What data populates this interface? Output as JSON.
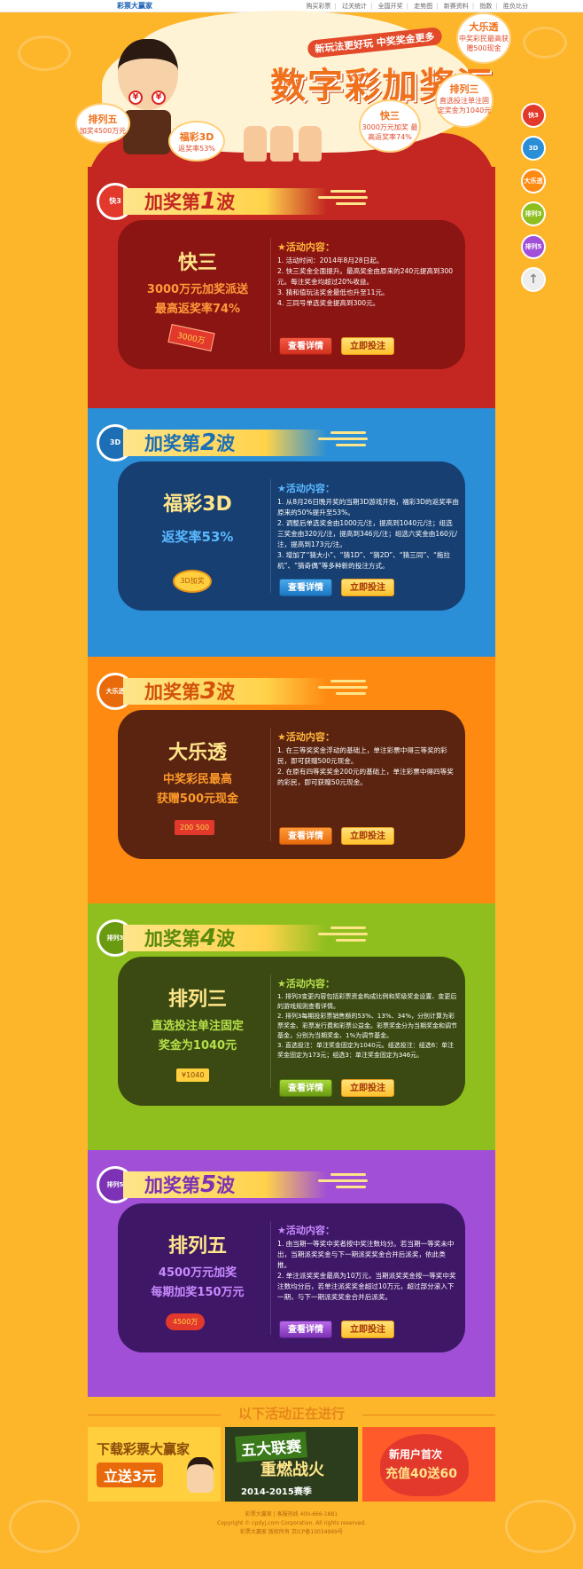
{
  "topbar": {
    "logo": "彩票大赢家",
    "nav": [
      "购买彩票",
      "过关统计",
      "全国开奖",
      "走势图",
      "新赛资料",
      "指数",
      "胜负比分"
    ]
  },
  "header": {
    "slogan": "新玩法更好玩 中奖奖金更多",
    "title": "数字彩加奖汇",
    "bubbles": {
      "pl5": {
        "name": "排列五",
        "desc": "加奖4500万元"
      },
      "fc3d": {
        "name": "福彩3D",
        "desc": "返奖率53%"
      },
      "k3": {
        "name": "快三",
        "desc": "3000万元加奖 最高返奖率74%"
      },
      "pl3": {
        "name": "排列三",
        "desc": "直选投注单注固定奖金为1040元"
      },
      "dlt": {
        "name": "大乐透",
        "desc": "中奖彩民最高获赠500现金"
      }
    }
  },
  "sidenav": [
    "快3",
    "3D",
    "大乐透",
    "排列3",
    "排列5",
    "↑"
  ],
  "waves": [
    {
      "title_prefix": "加奖第",
      "num": "1",
      "title_suffix": "波",
      "badge": "快3",
      "game": "快三",
      "promo": [
        "3000万元加奖派送",
        "最高返奖率74%"
      ],
      "deco": "3000万",
      "act_title": "★活动内容：",
      "items": [
        "1. 活动时间：2014年8月28日起。",
        "2. 快三奖金全面提升。最高奖金由原来的240元提高到300元。每注奖金均超过20%收益。",
        "3. 猜和值玩法奖金最低也升至11元。",
        "4. 三同号单选奖金提高到300元。"
      ],
      "btn_detail": "查看详情",
      "btn_bet": "立即投注"
    },
    {
      "title_prefix": "加奖第",
      "num": "2",
      "title_suffix": "波",
      "badge": "3D",
      "game": "福彩3D",
      "promo": [
        "返奖率53%"
      ],
      "deco": "3D加奖",
      "act_title": "★活动内容：",
      "items": [
        "1. 从8月26日晚开奖的当期3D游戏开始，福彩3D的返奖率由原来的50%提升至53%。",
        "2. 调整后单选奖金由1000元/注，提高到1040元/注；组选三奖金由320元/注，提高到346元/注；组选六奖金由160元/注，提高到173元/注。",
        "3. 增加了“猜大小”、“猜1D”、“猜2D”、“猜三同”、“拖拉机”、“猜奇偶”等多种新的投注方式。"
      ],
      "btn_detail": "查看详情",
      "btn_bet": "立即投注"
    },
    {
      "title_prefix": "加奖第",
      "num": "3",
      "title_suffix": "波",
      "badge": "大乐透",
      "game": "大乐透",
      "promo": [
        "中奖彩民最高",
        "获赠500元现金"
      ],
      "deco": "200 500",
      "act_title": "★活动内容：",
      "items": [
        "1. 在三等奖奖金浮动的基础上，单注彩票中得三等奖的彩民，即可获赠500元现金。",
        "2. 在原有四等奖奖金200元的基础上，单注彩票中得四等奖的彩民，即可获赠50元现金。"
      ],
      "btn_detail": "查看详情",
      "btn_bet": "立即投注"
    },
    {
      "title_prefix": "加奖第",
      "num": "4",
      "title_suffix": "波",
      "badge": "排列3",
      "game": "排列三",
      "promo": [
        "直选投注单注固定",
        "奖金为1040元"
      ],
      "deco": "¥1040",
      "act_title": "★活动内容：",
      "items": [
        "1. 排列3变更内容包括彩票资金构成比例和奖级奖金设置、变更后的游戏规则查看详情。",
        "2. 排列3每期投彩票销售额的53%、13%、34%，分别计算为彩票奖金、彩票发行费和彩票公益金。彩票奖金分为当期奖金和调节基金，分别为当期奖金、1%为调节基金。",
        "3. 直选投注：单注奖金固定为1040元。组选投注：组选6：单注奖金固定为173元；组选3：单注奖金固定为346元。"
      ],
      "btn_detail": "查看详情",
      "btn_bet": "立即投注"
    },
    {
      "title_prefix": "加奖第",
      "num": "5",
      "title_suffix": "波",
      "badge": "排列5",
      "game": "排列五",
      "promo": [
        "4500万元加奖",
        "每期加奖150万元"
      ],
      "deco": "4500万",
      "act_title": "★活动内容：",
      "items": [
        "1. 由当期一等奖中奖者按中奖注数均分。若当期一等奖未中出，当期派奖奖金与下一期派奖奖金合并后派奖，依此类推。",
        "2. 单注派奖奖金最高为10万元，当期派奖奖金按一等奖中奖注数均分后，若单注派奖奖金超过10万元，超过部分滚入下一期，与下一期派奖奖金合并后派奖。"
      ],
      "btn_detail": "查看详情",
      "btn_bet": "立即投注"
    }
  ],
  "ongoing": {
    "title": "以下活动正在进行"
  },
  "promos": [
    {
      "line1": "下载彩票大赢家",
      "line2": "立送3元"
    },
    {
      "line1": "五大联赛",
      "line2": "重燃战火",
      "line3": "2014-2015赛季"
    },
    {
      "line1": "新用户首次",
      "line2": "充值40送60"
    }
  ],
  "footer": {
    "line1": "彩票大赢家 | 客服热线 400-666-1881",
    "line2": "Copyright © cpdyj.com Corporation. All rights reserved.",
    "line3": "彩票大赢家 版权所有 京ICP备10034969号"
  },
  "colors": {
    "page_bg": "#fdb52a",
    "wave1": "#c42721",
    "wave2": "#2a8fd6",
    "wave3": "#ff8a12",
    "wave4": "#8ebf1e",
    "wave5": "#a04fd6",
    "accent": "#f1701b"
  }
}
